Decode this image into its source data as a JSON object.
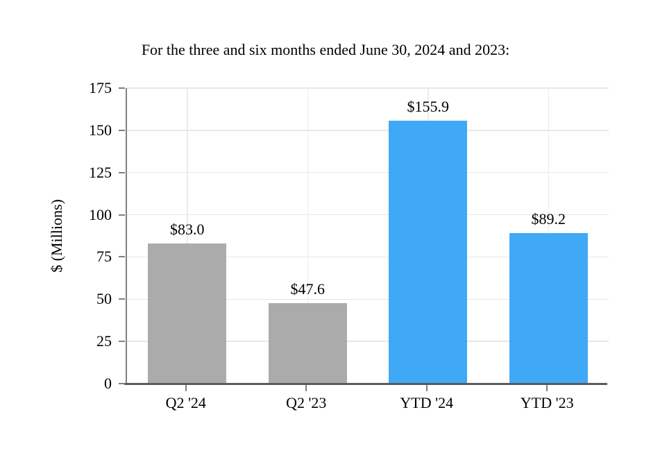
{
  "chart_data": {
    "type": "bar",
    "title": "For the three and six months ended June 30, 2024 and 2023:",
    "ylabel": "$ (Millions)",
    "xlabel": "",
    "categories": [
      "Q2 '24",
      "Q2 '23",
      "YTD '24",
      "YTD '23"
    ],
    "values": [
      83.0,
      47.6,
      155.9,
      89.2
    ],
    "value_labels": [
      "$83.0",
      "$47.6",
      "$155.9",
      "$89.2"
    ],
    "bar_colors": [
      "#ABABAB",
      "#ABABAB",
      "#3FA9F8",
      "#3FA9F8"
    ],
    "ylim": [
      0,
      175
    ],
    "yticks": [
      0,
      25,
      50,
      75,
      100,
      125,
      150,
      175
    ],
    "grid": true,
    "legend_position": "none"
  },
  "colors": {
    "gray_bar": "#ABABAB",
    "blue_bar": "#3FA9F8",
    "gridline_h": "#E7E7E7",
    "gridline_v": "#EBEBEB",
    "left_spine": "#808080",
    "bottom_axis": "#5B5B5B",
    "tick": "#7F7F7F",
    "background": "#FFFFFF",
    "text": "#000000"
  }
}
